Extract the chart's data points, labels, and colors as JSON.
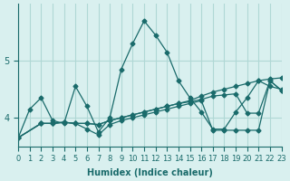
{
  "xlabel": "Humidex (Indice chaleur)",
  "bg_color": "#d9f0ef",
  "grid_color": "#b0d8d5",
  "line_color": "#1a6b6b",
  "xlim": [
    0,
    23
  ],
  "ylim": [
    3.5,
    6.0
  ],
  "yticks": [
    4,
    5
  ],
  "xticks": [
    0,
    1,
    2,
    3,
    4,
    5,
    6,
    7,
    8,
    9,
    10,
    11,
    12,
    13,
    14,
    15,
    16,
    17,
    18,
    19,
    20,
    21,
    22,
    23
  ],
  "series": [
    [
      [
        0,
        3.65
      ],
      [
        1,
        4.15
      ],
      [
        2,
        4.35
      ],
      [
        3,
        3.95
      ],
      [
        4,
        3.9
      ],
      [
        5,
        4.55
      ],
      [
        6,
        4.2
      ],
      [
        7,
        3.75
      ],
      [
        8,
        4.0
      ],
      [
        9,
        4.85
      ],
      [
        10,
        5.3
      ],
      [
        11,
        5.7
      ],
      [
        12,
        5.45
      ],
      [
        13,
        5.15
      ],
      [
        14,
        4.65
      ],
      [
        15,
        4.35
      ],
      [
        16,
        4.1
      ],
      [
        17,
        3.8
      ],
      [
        18,
        3.8
      ],
      [
        19,
        4.1
      ],
      [
        20,
        4.35
      ],
      [
        21,
        4.65
      ],
      [
        22,
        4.55
      ],
      [
        23,
        4.5
      ]
    ],
    [
      [
        0,
        3.65
      ],
      [
        2,
        3.9
      ],
      [
        3,
        3.9
      ],
      [
        4,
        3.92
      ],
      [
        5,
        3.9
      ],
      [
        6,
        3.9
      ],
      [
        7,
        3.88
      ],
      [
        8,
        3.95
      ],
      [
        9,
        4.0
      ],
      [
        10,
        4.05
      ],
      [
        11,
        4.1
      ],
      [
        12,
        4.15
      ],
      [
        13,
        4.2
      ],
      [
        14,
        4.25
      ],
      [
        15,
        4.3
      ],
      [
        16,
        4.38
      ],
      [
        17,
        4.45
      ],
      [
        18,
        4.5
      ],
      [
        19,
        4.55
      ],
      [
        20,
        4.6
      ],
      [
        21,
        4.65
      ],
      [
        22,
        4.68
      ],
      [
        23,
        4.7
      ]
    ],
    [
      [
        0,
        3.65
      ],
      [
        2,
        3.9
      ],
      [
        3,
        3.9
      ],
      [
        4,
        3.92
      ],
      [
        5,
        3.9
      ],
      [
        6,
        3.9
      ],
      [
        7,
        3.88
      ],
      [
        8,
        3.95
      ],
      [
        9,
        4.0
      ],
      [
        10,
        4.05
      ],
      [
        11,
        4.1
      ],
      [
        12,
        4.15
      ],
      [
        13,
        4.2
      ],
      [
        14,
        4.25
      ],
      [
        15,
        4.28
      ],
      [
        16,
        4.32
      ],
      [
        17,
        4.38
      ],
      [
        18,
        4.4
      ],
      [
        19,
        4.42
      ],
      [
        20,
        4.08
      ],
      [
        21,
        4.08
      ],
      [
        22,
        4.65
      ],
      [
        23,
        4.48
      ]
    ],
    [
      [
        0,
        3.65
      ],
      [
        2,
        3.9
      ],
      [
        3,
        3.9
      ],
      [
        4,
        3.92
      ],
      [
        5,
        3.9
      ],
      [
        6,
        3.8
      ],
      [
        7,
        3.7
      ],
      [
        8,
        3.88
      ],
      [
        9,
        3.95
      ],
      [
        10,
        4.0
      ],
      [
        11,
        4.05
      ],
      [
        12,
        4.1
      ],
      [
        13,
        4.15
      ],
      [
        14,
        4.2
      ],
      [
        15,
        4.25
      ],
      [
        16,
        4.3
      ],
      [
        17,
        3.78
      ],
      [
        18,
        3.78
      ],
      [
        19,
        3.78
      ],
      [
        20,
        3.78
      ],
      [
        21,
        3.78
      ],
      [
        22,
        4.65
      ],
      [
        23,
        4.48
      ]
    ]
  ]
}
